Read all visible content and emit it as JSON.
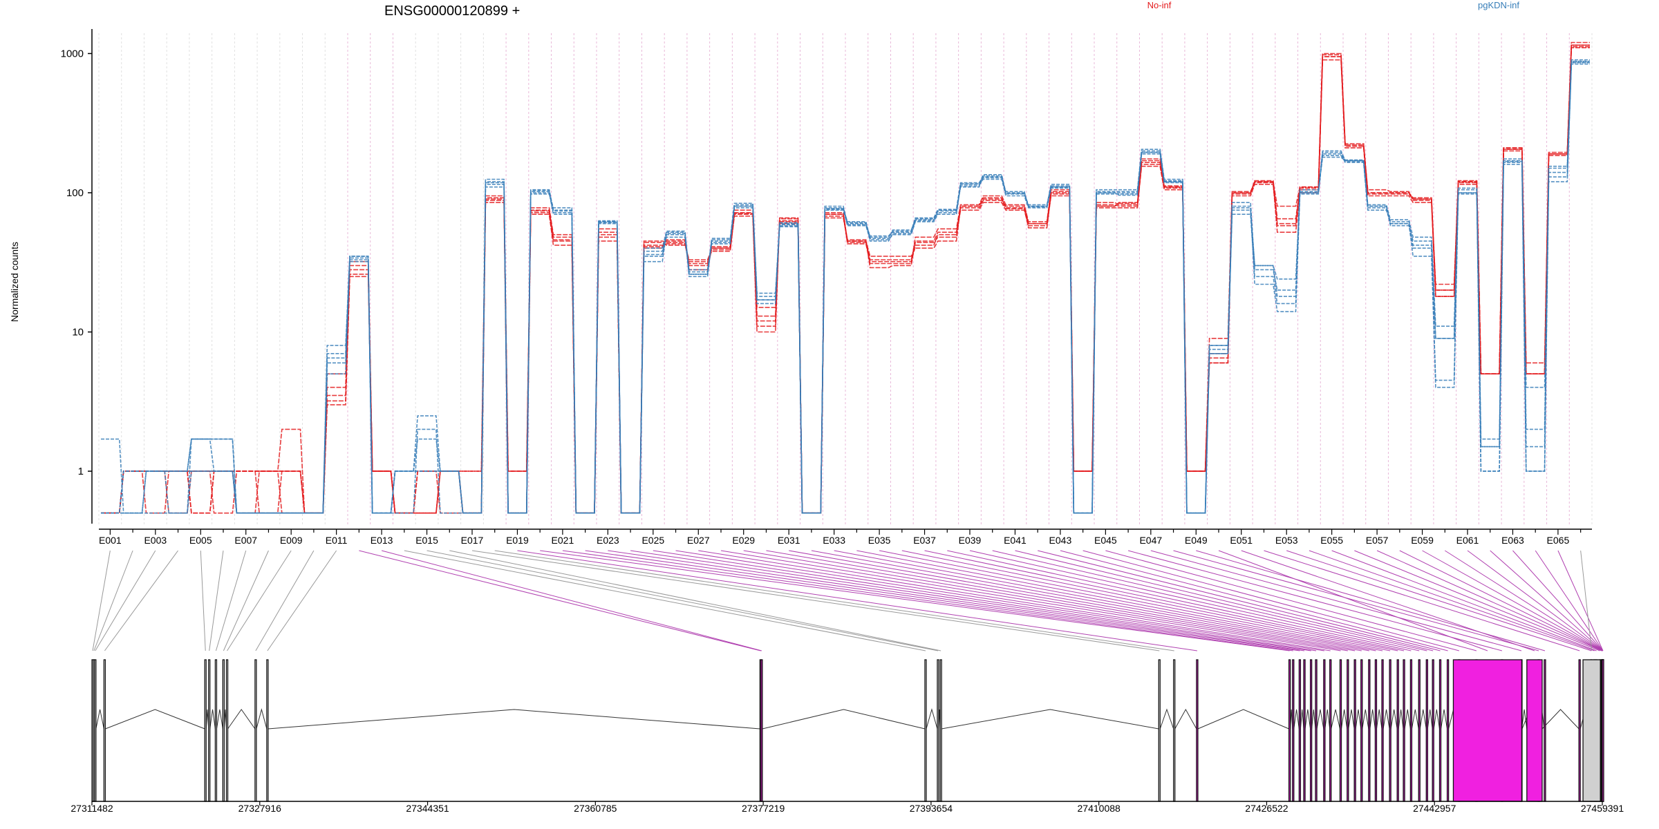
{
  "chart_data": {
    "type": "line",
    "title": "ENSG00000120899 +",
    "ylabel": "Normalized counts",
    "xlabel": "",
    "yscale": "log",
    "ylim": [
      0.5,
      1300
    ],
    "yticks": [
      1,
      10,
      100,
      1000
    ],
    "ytick_labels": [
      "1",
      "10",
      "100",
      "1000"
    ],
    "grid": "vertical exon separators (dotted; purple where the exon is tested)",
    "legend": [
      {
        "name": "No-inf",
        "color": "#e41a1c"
      },
      {
        "name": "pgKDN-inf",
        "color": "#377eb8"
      }
    ],
    "exons": [
      "E001",
      "E002",
      "E003",
      "E004",
      "E005",
      "E006",
      "E007",
      "E008",
      "E009",
      "E010",
      "E011",
      "E012",
      "E013",
      "E014",
      "E015",
      "E016",
      "E017",
      "E018",
      "E019",
      "E020",
      "E021",
      "E022",
      "E023",
      "E024",
      "E025",
      "E026",
      "E027",
      "E028",
      "E029",
      "E030",
      "E031",
      "E032",
      "E033",
      "E034",
      "E035",
      "E036",
      "E037",
      "E038",
      "E039",
      "E040",
      "E041",
      "E042",
      "E043",
      "E044",
      "E045",
      "E046",
      "E047",
      "E048",
      "E049",
      "E050",
      "E051",
      "E052",
      "E053",
      "E054",
      "E055",
      "E056",
      "E057",
      "E058",
      "E059",
      "E060",
      "E061",
      "E062",
      "E063",
      "E064",
      "E065",
      "E066"
    ],
    "tested_exons": [
      "E012",
      "E013",
      "E019",
      "E020",
      "E021",
      "E022",
      "E023",
      "E024",
      "E025",
      "E026",
      "E027",
      "E028",
      "E029",
      "E030",
      "E031",
      "E032",
      "E033",
      "E034",
      "E035",
      "E036",
      "E037",
      "E038",
      "E039",
      "E040",
      "E041",
      "E042",
      "E043",
      "E044",
      "E045",
      "E046",
      "E047",
      "E048",
      "E049",
      "E050",
      "E051",
      "E052",
      "E053",
      "E054",
      "E055",
      "E056",
      "E057",
      "E058",
      "E059",
      "E060",
      "E061",
      "E062",
      "E063",
      "E064",
      "E065"
    ],
    "xtick_labels": [
      "E001",
      "E003",
      "E005",
      "E007",
      "E009",
      "E011",
      "E013",
      "E015",
      "E017",
      "E019",
      "E021",
      "E023",
      "E025",
      "E027",
      "E029",
      "E031",
      "E033",
      "E035",
      "E037",
      "E039",
      "E041",
      "E043",
      "E045",
      "E047",
      "E049",
      "E051",
      "E053",
      "E055",
      "E057",
      "E059",
      "E061",
      "E063",
      "E065"
    ],
    "series": [
      {
        "group": "No-inf",
        "color": "#e41a1c",
        "values": [
          0.5,
          1,
          1,
          1,
          0.5,
          1,
          1,
          1,
          0.5,
          0.5,
          3,
          25,
          1,
          0.5,
          0.5,
          1,
          1,
          85,
          1,
          70,
          42,
          0.5,
          45,
          0.5,
          40,
          45,
          30,
          40,
          70,
          11,
          65,
          0.5,
          70,
          45,
          35,
          35,
          40,
          45,
          80,
          90,
          80,
          60,
          100,
          1,
          80,
          85,
          160,
          110,
          1,
          6,
          100,
          120,
          80,
          110,
          950,
          220,
          100,
          100,
          90,
          18,
          120,
          5,
          210,
          5,
          190,
          1100
        ]
      },
      {
        "group": "No-inf",
        "color": "#e41a1c",
        "values": [
          0.5,
          1,
          0.5,
          1,
          1,
          1,
          1,
          0.5,
          1,
          0.5,
          3.5,
          28,
          1,
          0.5,
          0.5,
          1,
          0.5,
          90,
          1,
          72,
          45,
          0.5,
          48,
          0.5,
          42,
          43,
          32,
          38,
          72,
          12,
          63,
          0.5,
          68,
          44,
          32,
          32,
          42,
          50,
          75,
          85,
          75,
          58,
          95,
          1,
          82,
          80,
          155,
          105,
          1,
          6.5,
          95,
          115,
          60,
          105,
          900,
          210,
          95,
          95,
          85,
          20,
          115,
          5,
          200,
          5,
          185,
          1150
        ]
      },
      {
        "group": "No-inf",
        "color": "#e41a1c",
        "values": [
          0.5,
          1,
          1,
          0.5,
          1,
          1,
          0.5,
          1,
          1,
          0.5,
          4,
          30,
          1,
          0.5,
          1,
          0.5,
          0.5,
          88,
          0.5,
          75,
          48,
          0.5,
          50,
          0.5,
          44,
          42,
          33,
          39,
          68,
          10,
          66,
          0.5,
          66,
          46,
          29,
          30,
          45,
          52,
          78,
          88,
          78,
          56,
          98,
          1,
          78,
          78,
          165,
          108,
          1,
          7,
          102,
          118,
          52,
          100,
          980,
          215,
          105,
          102,
          88,
          22,
          118,
          5,
          205,
          6,
          190,
          1120
        ]
      },
      {
        "group": "No-inf",
        "color": "#e41a1c",
        "values": [
          0.5,
          1,
          1,
          1,
          1,
          0.5,
          1,
          1,
          2,
          0.5,
          5,
          32,
          1,
          0.5,
          0.5,
          1,
          1,
          95,
          0.5,
          78,
          50,
          0.5,
          55,
          0.5,
          45,
          44,
          31,
          41,
          75,
          15,
          60,
          0.5,
          72,
          43,
          31,
          31,
          48,
          55,
          82,
          95,
          82,
          62,
          105,
          1,
          85,
          82,
          175,
          112,
          1,
          9,
          100,
          122,
          65,
          108,
          1000,
          225,
          98,
          98,
          90,
          18,
          122,
          5,
          210,
          5,
          195,
          1200
        ]
      },
      {
        "group": "No-inf",
        "color": "#e41a1c",
        "values": [
          0.5,
          1,
          1,
          1,
          0.5,
          1,
          1,
          1,
          1,
          0.5,
          3.2,
          26,
          1,
          0.5,
          1,
          1,
          0.5,
          92,
          1,
          74,
          46,
          0.5,
          52,
          0.5,
          41,
          46,
          28,
          40,
          71,
          13,
          62,
          0.5,
          70,
          45,
          33,
          33,
          44,
          48,
          80,
          92,
          77,
          60,
          102,
          1,
          80,
          84,
          170,
          110,
          1,
          6,
          98,
          120,
          58,
          110,
          950,
          220,
          100,
          100,
          92,
          20,
          120,
          5,
          205,
          5,
          190,
          1150
        ]
      },
      {
        "group": "pgKDN-inf",
        "color": "#377eb8",
        "values": [
          1.7,
          0.5,
          1,
          1,
          1.7,
          1,
          0.5,
          0.5,
          0.5,
          0.5,
          8,
          35,
          0.5,
          1,
          2.5,
          1,
          0.5,
          120,
          0.5,
          105,
          75,
          0.5,
          62,
          0.5,
          32,
          52,
          25,
          45,
          82,
          18,
          58,
          0.5,
          78,
          60,
          48,
          52,
          65,
          75,
          110,
          130,
          100,
          80,
          110,
          0.5,
          100,
          100,
          200,
          120,
          0.5,
          8,
          70,
          25,
          16,
          100,
          200,
          170,
          80,
          60,
          35,
          4.5,
          100,
          1.7,
          160,
          1,
          150,
          900
        ]
      },
      {
        "group": "pgKDN-inf",
        "color": "#377eb8",
        "values": [
          0.5,
          0.5,
          0.5,
          0.5,
          1.7,
          1.7,
          0.5,
          0.5,
          0.5,
          0.5,
          6,
          33,
          0.5,
          0.5,
          2,
          0.5,
          0.5,
          110,
          0.5,
          100,
          70,
          0.5,
          60,
          0.5,
          35,
          50,
          26,
          44,
          78,
          16,
          60,
          0.5,
          75,
          58,
          46,
          50,
          62,
          70,
          115,
          125,
          95,
          78,
          108,
          0.5,
          98,
          98,
          190,
          118,
          0.5,
          7,
          75,
          30,
          18,
          98,
          190,
          165,
          75,
          62,
          40,
          4,
          105,
          1.5,
          170,
          1.5,
          155,
          880
        ]
      },
      {
        "group": "pgKDN-inf",
        "color": "#377eb8",
        "values": [
          0.5,
          1,
          1,
          0.5,
          1,
          1,
          0.5,
          0.5,
          0.5,
          0.5,
          7,
          34,
          0.5,
          1,
          1,
          1,
          0.5,
          115,
          0.5,
          102,
          72,
          0.5,
          63,
          0.5,
          38,
          48,
          27,
          46,
          80,
          17,
          57,
          0.5,
          76,
          62,
          47,
          54,
          64,
          72,
          112,
          132,
          98,
          82,
          112,
          0.5,
          102,
          102,
          195,
          122,
          0.5,
          7.5,
          80,
          22,
          14,
          102,
          185,
          168,
          78,
          58,
          45,
          9,
          98,
          1,
          165,
          2,
          140,
          860
        ]
      },
      {
        "group": "pgKDN-inf",
        "color": "#377eb8",
        "values": [
          0.5,
          0.5,
          1,
          1,
          1,
          1,
          0.5,
          0.5,
          0.5,
          0.5,
          5,
          35,
          0.5,
          1,
          1,
          1,
          0.5,
          125,
          0.5,
          98,
          78,
          0.5,
          61,
          0.5,
          40,
          53,
          26,
          47,
          84,
          19,
          59,
          0.5,
          80,
          59,
          49,
          53,
          66,
          76,
          118,
          128,
          102,
          79,
          115,
          0.5,
          105,
          105,
          205,
          125,
          0.5,
          8,
          85,
          28,
          20,
          105,
          180,
          170,
          82,
          64,
          48,
          11,
          108,
          1,
          175,
          1,
          130,
          840
        ]
      },
      {
        "group": "pgKDN-inf",
        "color": "#377eb8",
        "values": [
          0.5,
          1,
          1,
          1,
          1.7,
          1.7,
          0.5,
          0.5,
          0.5,
          0.5,
          6.5,
          32,
          0.5,
          1,
          1.7,
          1,
          0.5,
          118,
          0.5,
          104,
          74,
          0.5,
          62,
          0.5,
          36,
          51,
          28,
          43,
          80,
          17,
          61,
          0.5,
          77,
          61,
          45,
          51,
          63,
          74,
          116,
          135,
          99,
          80,
          110,
          0.5,
          100,
          96,
          195,
          120,
          0.5,
          7,
          78,
          30,
          24,
          100,
          195,
          172,
          80,
          60,
          42,
          9,
          100,
          1.5,
          168,
          4,
          120,
          870
        ]
      }
    ],
    "gene_model": {
      "coordinate_labels": [
        "27311482",
        "27327916",
        "27344351",
        "27360785",
        "27377219",
        "27393654",
        "27410088",
        "27426522",
        "27442957",
        "27459391"
      ],
      "range": [
        27311482,
        27459391
      ]
    }
  }
}
